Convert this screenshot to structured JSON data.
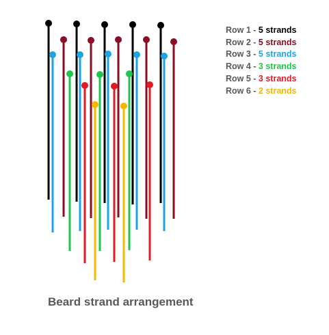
{
  "caption": "Beard strand arrangement",
  "rows": [
    {
      "label": "Row 1",
      "count": "5 strands",
      "color": "#000000",
      "strands": 5
    },
    {
      "label": "Row 2",
      "count": "5 strands",
      "color": "#8b0e24",
      "strands": 5
    },
    {
      "label": "Row 3",
      "count": "5 strands",
      "color": "#1ea4e4",
      "strands": 5
    },
    {
      "label": "Row 4",
      "count": "3 strands",
      "color": "#22c44a",
      "strands": 3
    },
    {
      "label": "Row 5",
      "count": "3 strands",
      "color": "#e21b23",
      "strands": 3
    },
    {
      "label": "Row 6",
      "count": "2 strands",
      "color": "#f5b800",
      "strands": 2
    }
  ],
  "separator": " - "
}
